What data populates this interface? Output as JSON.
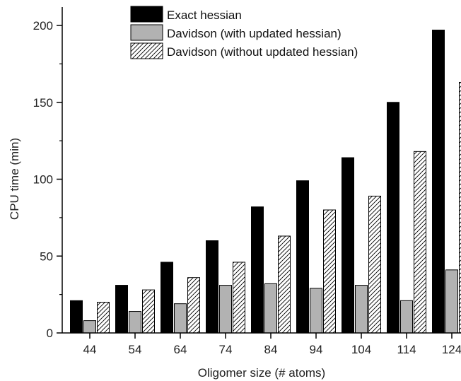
{
  "chart_data": {
    "type": "bar",
    "xlabel": "Oligomer size (# atoms)",
    "ylabel": "CPU time (min)",
    "ylim": [
      0,
      200
    ],
    "yticks": [
      0,
      50,
      100,
      150,
      200
    ],
    "grid": false,
    "legend_position": "top-center",
    "categories": [
      "44",
      "54",
      "64",
      "74",
      "84",
      "94",
      "104",
      "114",
      "124"
    ],
    "series": [
      {
        "name": "Exact hessian",
        "fill": "solid-black",
        "values": [
          21,
          31,
          46,
          60,
          82,
          99,
          114,
          150,
          197
        ]
      },
      {
        "name": "Davidson (with updated hessian)",
        "fill": "solid-gray",
        "values": [
          8,
          14,
          19,
          31,
          32,
          29,
          31,
          21,
          41
        ]
      },
      {
        "name": "Davidson (without updated hessian)",
        "fill": "hatched",
        "values": [
          20,
          28,
          36,
          46,
          63,
          80,
          89,
          118,
          163
        ]
      }
    ],
    "colors": {
      "exact": "#000000",
      "with_updated": "#b2b2b2",
      "hatch": "#000000",
      "axis": "#000000"
    }
  }
}
